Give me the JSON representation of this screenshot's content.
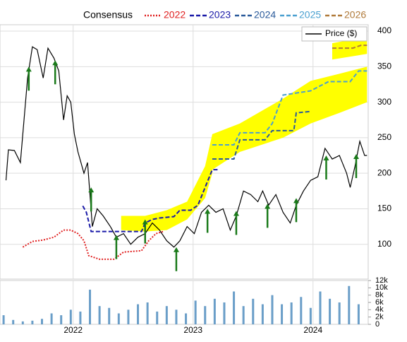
{
  "chart_data": [
    {
      "type": "line",
      "legend_title": "Consensus",
      "xlim": [
        2021.39,
        2024.46
      ],
      "xticks": [
        2022,
        2023,
        2024
      ],
      "ylim": [
        51,
        409
      ],
      "yticks": [
        100,
        150,
        200,
        250,
        300,
        350,
        400
      ],
      "grid": true,
      "series": [
        {
          "name": "Price ($)",
          "color": "#000000",
          "style": "solid",
          "x": [
            2021.44,
            2021.46,
            2021.51,
            2021.56,
            2021.62,
            2021.66,
            2021.7,
            2021.75,
            2021.79,
            2021.84,
            2021.88,
            2021.92,
            2021.95,
            2021.98,
            2022.01,
            2022.04,
            2022.09,
            2022.12,
            2022.16,
            2022.2,
            2022.25,
            2022.31,
            2022.36,
            2022.42,
            2022.48,
            2022.54,
            2022.6,
            2022.66,
            2022.72,
            2022.78,
            2022.84,
            2022.89,
            2022.95,
            2023.01,
            2023.07,
            2023.13,
            2023.19,
            2023.25,
            2023.31,
            2023.36,
            2023.42,
            2023.48,
            2023.54,
            2023.58,
            2023.63,
            2023.69,
            2023.75,
            2023.81,
            2023.86,
            2023.92,
            2023.98,
            2024.04,
            2024.1,
            2024.16,
            2024.22,
            2024.28,
            2024.31,
            2024.35,
            2024.39,
            2024.43,
            2024.45
          ],
          "values": [
            190,
            233,
            232,
            215,
            334,
            378,
            374,
            334,
            376,
            362,
            344,
            275,
            309,
            300,
            255,
            230,
            200,
            215,
            125,
            150,
            140,
            125,
            110,
            115,
            100,
            110,
            115,
            130,
            120,
            105,
            96,
            105,
            125,
            115,
            145,
            155,
            145,
            150,
            120,
            140,
            175,
            170,
            160,
            175,
            155,
            170,
            145,
            130,
            155,
            175,
            190,
            195,
            235,
            220,
            225,
            200,
            180,
            210,
            245,
            225,
            225
          ]
        },
        {
          "name": "2022",
          "color": "#e02020",
          "style": "dotted",
          "x": [
            2021.58,
            2021.66,
            2021.75,
            2021.84,
            2021.92,
            2021.98,
            2022.04,
            2022.09,
            2022.13,
            2022.22,
            2022.34,
            2022.42,
            2022.57,
            2022.63,
            2022.69,
            2022.75
          ],
          "values": [
            96,
            104,
            106,
            110,
            120,
            120,
            115,
            105,
            84,
            79,
            79,
            89,
            91,
            105,
            115,
            118
          ]
        },
        {
          "name": "2023",
          "color": "#1a1aa8",
          "style": "dashed",
          "x": [
            2022.08,
            2022.11,
            2022.15,
            2022.34,
            2022.57,
            2022.6,
            2022.66,
            2022.72,
            2022.84,
            2022.89,
            2022.98,
            2023.04,
            2023.1,
            2023.16,
            2023.22
          ],
          "values": [
            154,
            145,
            118,
            118,
            118,
            130,
            135,
            137,
            139,
            148,
            148,
            155,
            180,
            205,
            205
          ]
        },
        {
          "name": "2024",
          "color": "#2a5a9a",
          "style": "dashed",
          "x": [
            2023.16,
            2023.34,
            2023.39,
            2023.6,
            2023.66,
            2023.84,
            2023.86,
            2023.98
          ],
          "values": [
            220,
            220,
            247,
            247,
            260,
            260,
            285,
            287
          ]
        },
        {
          "name": "2025",
          "color": "#4aa0d0",
          "style": "dashed",
          "x": [
            2023.16,
            2023.34,
            2023.39,
            2023.6,
            2023.66,
            2023.75,
            2023.98,
            2024.13,
            2024.31,
            2024.38,
            2024.45
          ],
          "values": [
            240,
            240,
            257,
            257,
            270,
            310,
            316,
            329,
            329,
            344,
            344
          ]
        },
        {
          "name": "2026",
          "color": "#b07a3a",
          "style": "dashed",
          "x": [
            2024.16,
            2024.33,
            2024.4,
            2024.45
          ],
          "values": [
            376,
            376,
            380,
            380
          ]
        }
      ],
      "bands": [
        {
          "color": "#ffff00",
          "x": [
            2022.4,
            2022.6,
            2022.78,
            2022.95,
            2023.1,
            2023.16
          ],
          "high": [
            140,
            140,
            148,
            160,
            210,
            255
          ],
          "low": [
            120,
            118,
            120,
            135,
            165,
            200
          ]
        },
        {
          "color": "#ffff00",
          "x": [
            2023.16,
            2023.39,
            2023.75,
            2023.98,
            2024.22,
            2024.45
          ],
          "high": [
            255,
            270,
            305,
            330,
            340,
            350
          ],
          "low": [
            205,
            230,
            250,
            270,
            285,
            300
          ]
        },
        {
          "color": "#ffff00",
          "x": [
            2024.16,
            2024.45
          ],
          "high": [
            383,
            392
          ],
          "low": [
            360,
            368
          ]
        }
      ],
      "arrows": {
        "color": "#1a7a1a",
        "x": [
          2021.63,
          2021.85,
          2022.15,
          2022.36,
          2022.6,
          2022.86,
          2023.12,
          2023.36,
          2023.62,
          2023.86,
          2024.11,
          2024.36
        ],
        "values": [
          350,
          359,
          180,
          113,
          135,
          96,
          150,
          147,
          157,
          165,
          225,
          227
        ]
      }
    },
    {
      "type": "bar",
      "color": "#6a9ec8",
      "xlim": [
        2021.39,
        2024.46
      ],
      "ylim": [
        0,
        12000
      ],
      "yticks": [
        0,
        {
          "value": 2000,
          "label": "2k"
        },
        {
          "value": 4000,
          "label": "4k"
        },
        {
          "value": 6000,
          "label": "6k"
        },
        {
          "value": 8000,
          "label": "8k"
        },
        {
          "value": 10000,
          "label": "10k"
        },
        {
          "value": 12000,
          "label": "12k"
        }
      ],
      "x": [
        2021.42,
        2021.5,
        2021.58,
        2021.66,
        2021.74,
        2021.82,
        2021.9,
        2021.98,
        2022.06,
        2022.14,
        2022.22,
        2022.3,
        2022.38,
        2022.46,
        2022.54,
        2022.62,
        2022.7,
        2022.78,
        2022.86,
        2022.94,
        2023.02,
        2023.1,
        2023.18,
        2023.26,
        2023.34,
        2023.42,
        2023.5,
        2023.58,
        2023.66,
        2023.74,
        2023.82,
        2023.9,
        2023.98,
        2024.06,
        2024.14,
        2024.22,
        2024.3,
        2024.38
      ],
      "values": [
        2500,
        1200,
        800,
        1000,
        1500,
        3000,
        2500,
        4000,
        3500,
        9500,
        5000,
        4500,
        3000,
        4000,
        5500,
        6000,
        3500,
        5000,
        4000,
        3000,
        6500,
        5000,
        7000,
        6000,
        9000,
        5000,
        7000,
        5500,
        8000,
        5500,
        6000,
        7500,
        4500,
        9000,
        7000,
        6000,
        10500,
        5500
      ]
    }
  ]
}
